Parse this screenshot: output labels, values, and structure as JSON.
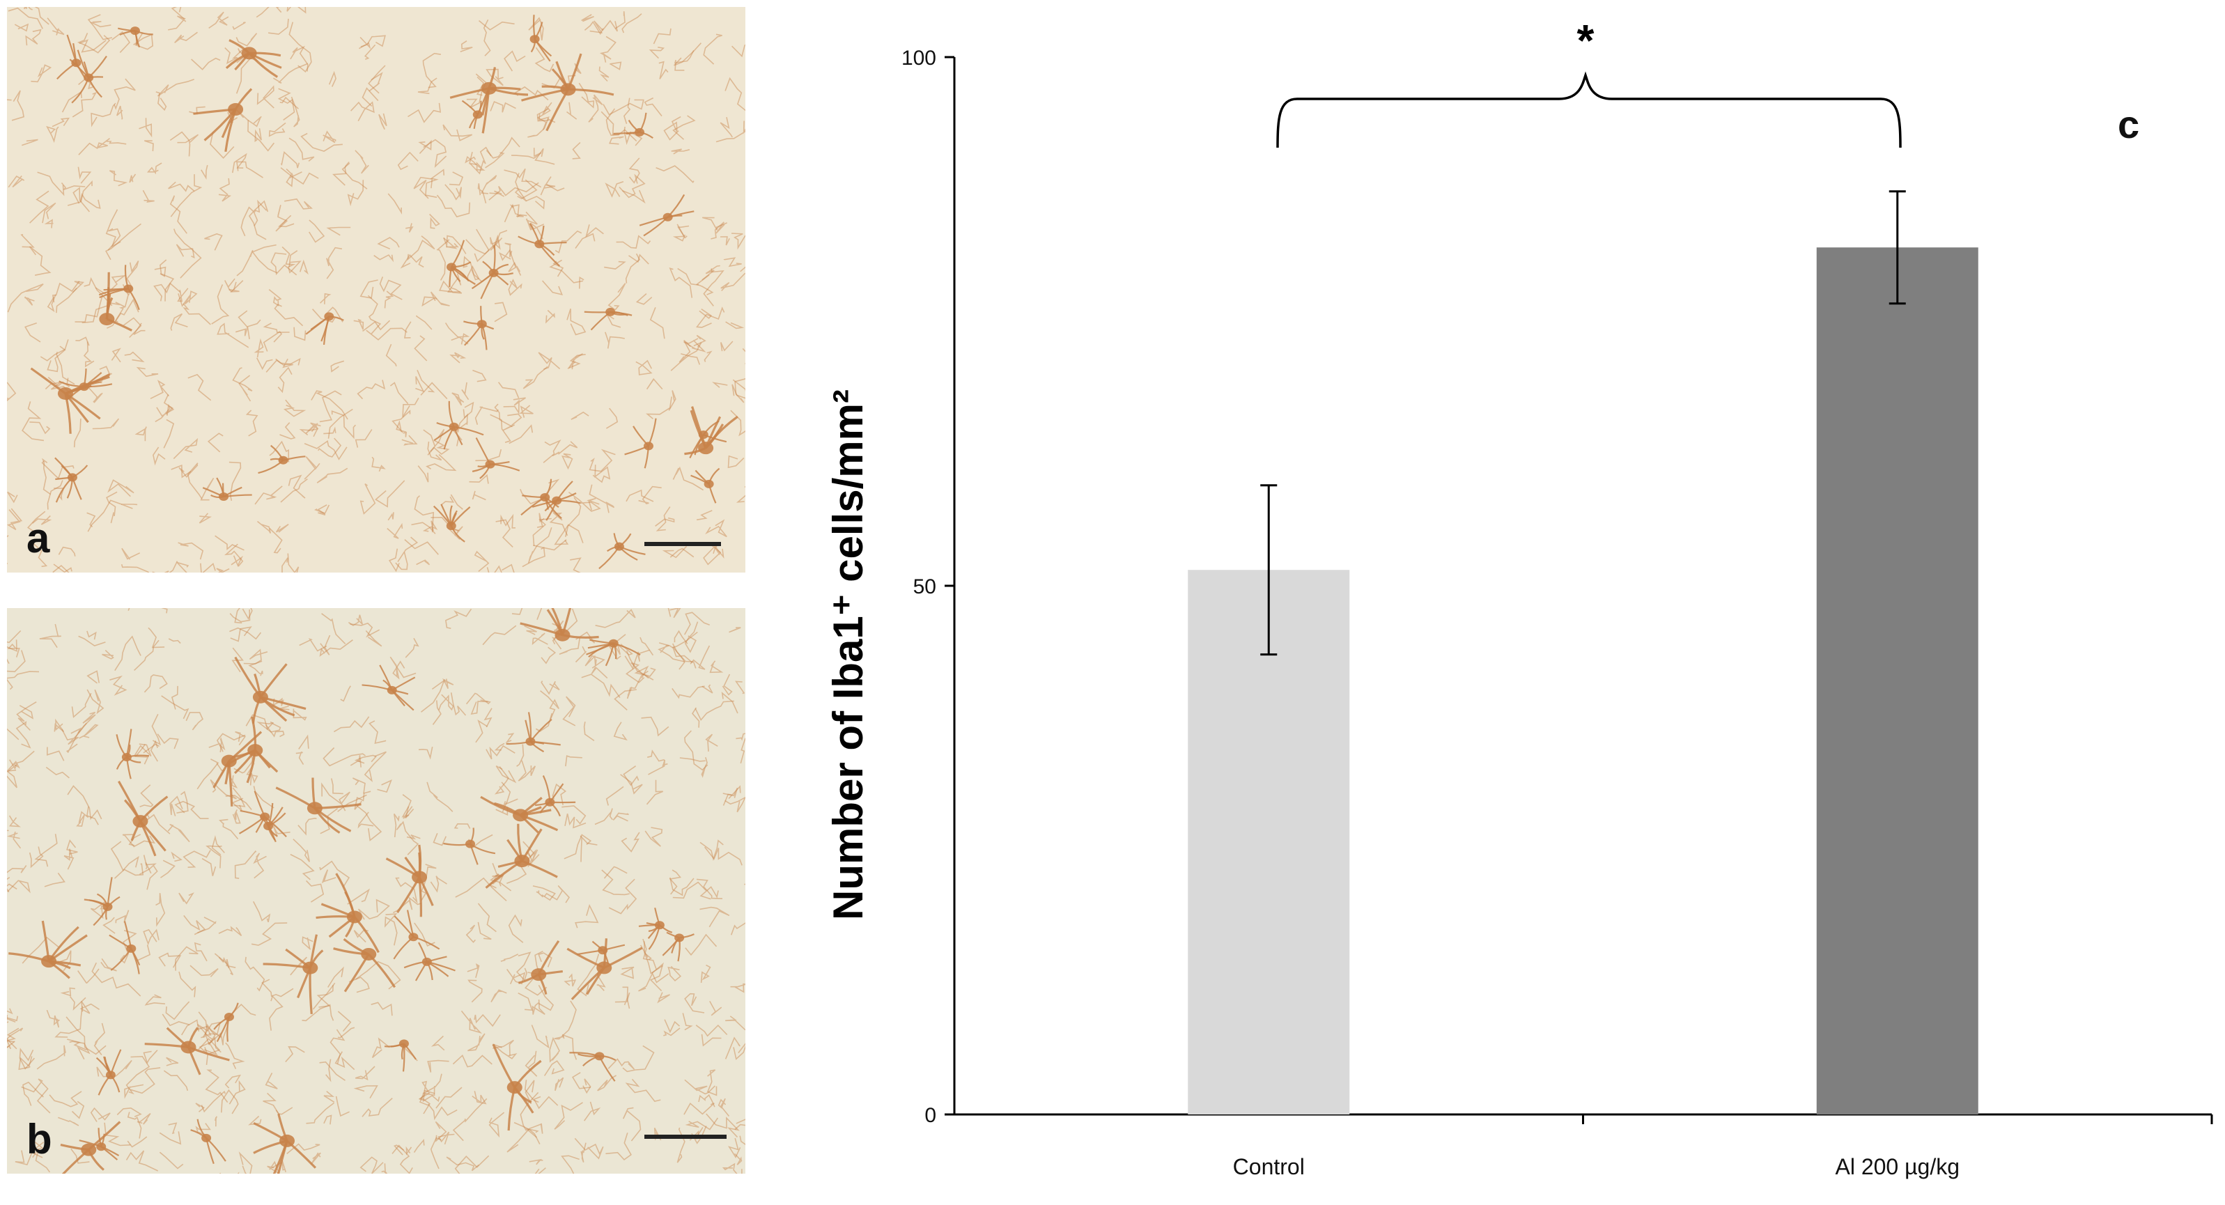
{
  "panels": {
    "a": {
      "label": "a"
    },
    "b": {
      "label": "b"
    },
    "c": {
      "label": "c"
    }
  },
  "colors": {
    "control_bar": "#d9d9d9",
    "al_bar": "#7f7f7f",
    "micrograph_bg_a": "#efe6d2",
    "micrograph_bg_b": "#ebe6d4",
    "stain": "#c8834a"
  },
  "chart_data": {
    "type": "bar",
    "categories": [
      "Control",
      "Al 200 µg/kg"
    ],
    "values": [
      51.5,
      82
    ],
    "errors": [
      8,
      5.3
    ],
    "ylabel": "Number of Iba1⁺ cells/mm²",
    "xlabel": "",
    "ylim": [
      0,
      100
    ],
    "yticks": [
      0,
      50,
      100
    ],
    "significance": {
      "between": [
        0,
        1
      ],
      "marker": "*"
    },
    "bar_colors": [
      "#d9d9d9",
      "#7f7f7f"
    ],
    "grid": false
  }
}
